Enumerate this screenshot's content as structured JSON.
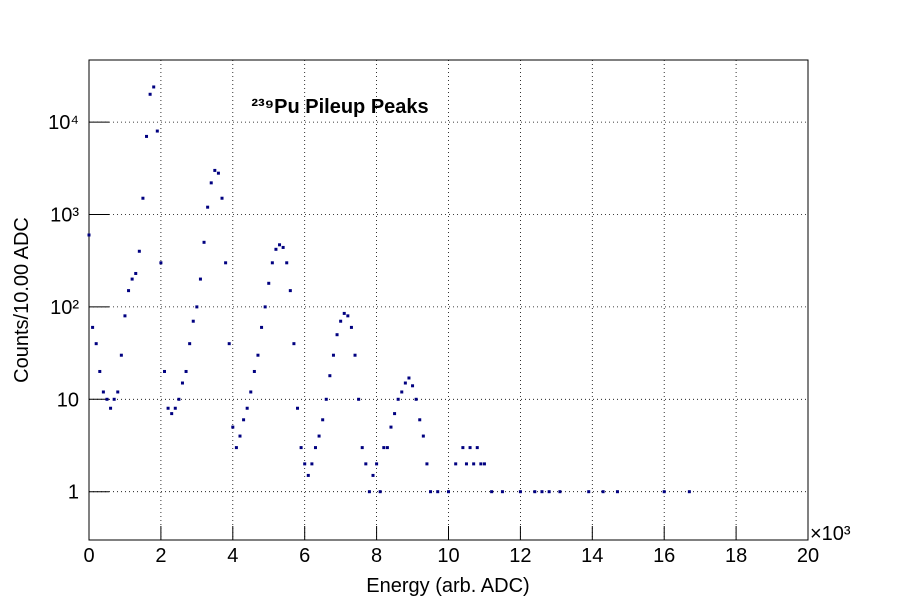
{
  "chart_data": {
    "type": "scatter",
    "title": "²³⁹Pu Pileup Peaks",
    "x_label": "Energy (arb. ADC)",
    "y_label": "Counts/10.00 ADC",
    "x_multiplier": "×10³",
    "log_y": true,
    "grid": true,
    "xlim": [
      0,
      20
    ],
    "xticks": [
      0,
      2,
      4,
      6,
      8,
      10,
      12,
      14,
      16,
      18,
      20
    ],
    "ylim": [
      0.3,
      47000
    ],
    "yticks": [
      1,
      10,
      {
        "value": 100,
        "label": "10²"
      },
      {
        "value": 1000,
        "label": "10³"
      },
      {
        "value": 10000,
        "label": "10⁴"
      }
    ],
    "series": [
      {
        "name": "239Pu",
        "color": "#000080",
        "x": [
          0.0,
          0.1,
          0.2,
          0.3,
          0.4,
          0.5,
          0.6,
          0.7,
          0.8,
          0.9,
          1.0,
          1.1,
          1.2,
          1.3,
          1.4,
          1.5,
          1.6,
          1.7,
          1.8,
          1.9,
          2.0,
          2.1,
          2.2,
          2.3,
          2.4,
          2.5,
          2.6,
          2.7,
          2.8,
          2.9,
          3.0,
          3.1,
          3.2,
          3.3,
          3.4,
          3.5,
          3.6,
          3.7,
          3.8,
          3.9,
          4.0,
          4.1,
          4.2,
          4.3,
          4.4,
          4.5,
          4.6,
          4.7,
          4.8,
          4.9,
          5.0,
          5.1,
          5.2,
          5.3,
          5.4,
          5.5,
          5.6,
          5.7,
          5.8,
          5.9,
          6.0,
          6.1,
          6.2,
          6.3,
          6.4,
          6.5,
          6.6,
          6.7,
          6.8,
          6.9,
          7.0,
          7.1,
          7.2,
          7.3,
          7.4,
          7.5,
          7.6,
          7.7,
          7.8,
          7.9,
          8.0,
          8.1,
          8.2,
          8.3,
          8.4,
          8.5,
          8.6,
          8.7,
          8.8,
          8.9,
          9.0,
          9.1,
          9.2,
          9.3,
          9.4,
          9.5,
          9.7,
          10.0,
          10.2,
          10.4,
          10.5,
          10.6,
          10.7,
          10.8,
          10.9,
          11.0,
          11.2,
          11.5,
          12.0,
          12.4,
          12.6,
          12.8,
          13.1,
          13.9,
          14.3,
          14.7,
          16.0,
          16.7
        ],
        "values": [
          600,
          60,
          40,
          20,
          12,
          10,
          8,
          10,
          12,
          30,
          80,
          150,
          200,
          230,
          400,
          1500,
          7000,
          20000,
          24000,
          8000,
          300,
          20,
          8,
          7,
          8,
          10,
          15,
          20,
          40,
          70,
          100,
          200,
          500,
          1200,
          2200,
          3000,
          2800,
          1500,
          300,
          40,
          5,
          3,
          4,
          6,
          8,
          12,
          20,
          30,
          60,
          100,
          180,
          300,
          420,
          470,
          440,
          300,
          150,
          40,
          8,
          3,
          2,
          1.5,
          2,
          3,
          4,
          6,
          10,
          18,
          30,
          50,
          70,
          85,
          80,
          60,
          30,
          10,
          3,
          2,
          1,
          1.5,
          2,
          1,
          3,
          3,
          5,
          7,
          10,
          12,
          15,
          17,
          14,
          10,
          6,
          4,
          2,
          1,
          1,
          1,
          2,
          3,
          2,
          3,
          2,
          3,
          2,
          2,
          1,
          1,
          1,
          1,
          1,
          1,
          1,
          1,
          1,
          1,
          1,
          1
        ]
      }
    ]
  }
}
